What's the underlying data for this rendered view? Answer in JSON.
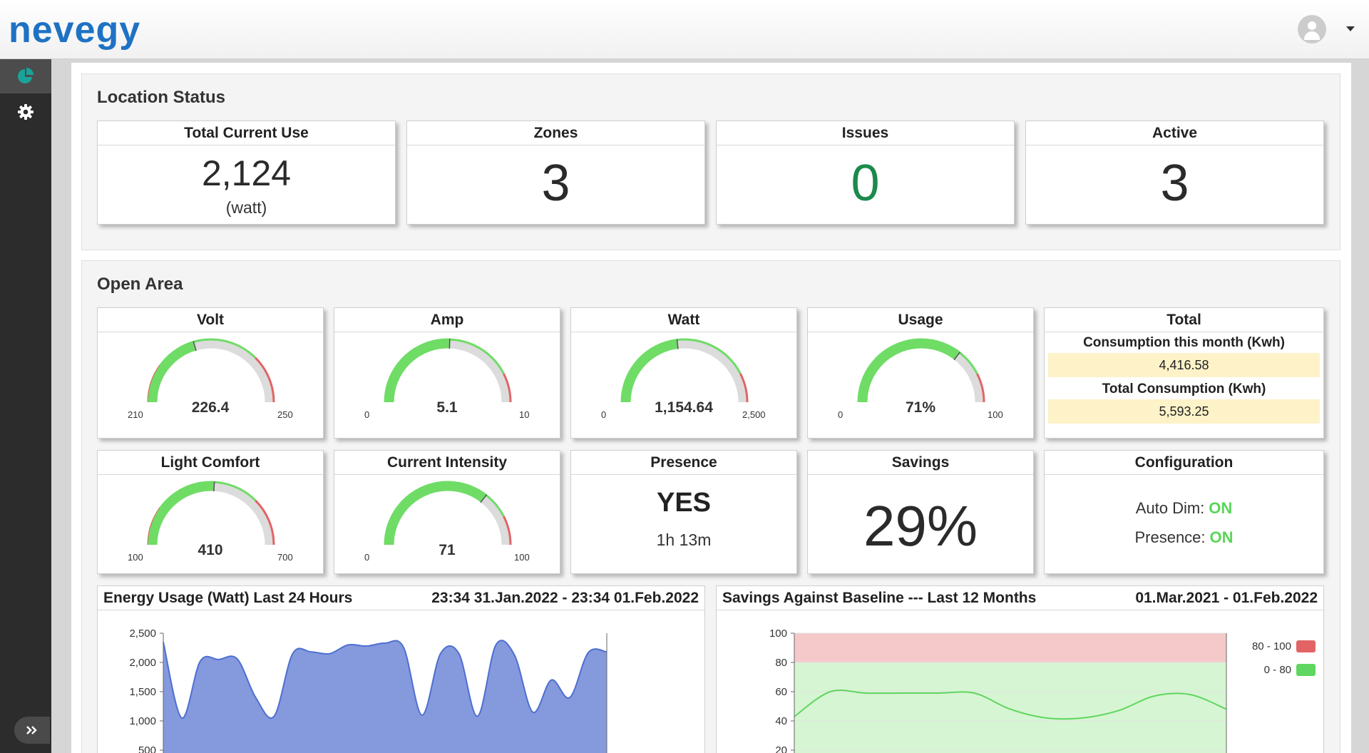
{
  "app": {
    "logo": "nevegy",
    "colors": {
      "brand": "#1e72c4",
      "accent": "#1aa39a",
      "green": "#6fdc66",
      "red": "#e36464",
      "ok": "#1b8a4c"
    }
  },
  "sidebar": {
    "items": [
      {
        "name": "dashboard",
        "icon": "pie-chart-icon",
        "active": true
      },
      {
        "name": "settings",
        "icon": "gear-icon",
        "active": false
      }
    ],
    "expand_icon": "double-chevron-right-icon"
  },
  "location_status": {
    "title": "Location Status",
    "cards": [
      {
        "label": "Total Current Use",
        "value": "2,124",
        "unit": "(watt)"
      },
      {
        "label": "Zones",
        "value": "3"
      },
      {
        "label": "Issues",
        "value": "0"
      },
      {
        "label": "Active",
        "value": "3"
      }
    ]
  },
  "open_area": {
    "title": "Open Area",
    "gauges": [
      {
        "label": "Volt",
        "value": 226.4,
        "value_text": "226.4",
        "min": 210,
        "max": 250,
        "min_text": "210",
        "max_text": "250",
        "low_red": 0.2,
        "high_red": 0.75
      },
      {
        "label": "Amp",
        "value": 5.1,
        "value_text": "5.1",
        "min": 0,
        "max": 10,
        "min_text": "0",
        "max_text": "10",
        "low_red": 0,
        "high_red": 0.85
      },
      {
        "label": "Watt",
        "value": 1154.64,
        "value_text": "1,154.64",
        "min": 0,
        "max": 2500,
        "min_text": "0",
        "max_text": "2,500",
        "low_red": 0,
        "high_red": 0.85
      },
      {
        "label": "Usage",
        "value": 71,
        "value_text": "71%",
        "min": 0,
        "max": 100,
        "min_text": "0",
        "max_text": "100",
        "low_red": 0,
        "high_red": 0.85
      },
      {
        "label": "Light Comfort",
        "value": 410,
        "value_text": "410",
        "min": 100,
        "max": 700,
        "min_text": "100",
        "max_text": "700",
        "low_red": 0.2,
        "high_red": 0.75
      },
      {
        "label": "Current Intensity",
        "value": 71,
        "value_text": "71",
        "min": 0,
        "max": 100,
        "min_text": "0",
        "max_text": "100",
        "low_red": 0,
        "high_red": 0.85
      }
    ],
    "total": {
      "label": "Total",
      "month_label": "Consumption this month (Kwh)",
      "month_value": "4,416.58",
      "total_label": "Total Consumption (Kwh)",
      "total_value": "5,593.25"
    },
    "presence": {
      "label": "Presence",
      "value": "YES",
      "duration": "1h 13m"
    },
    "savings": {
      "label": "Savings",
      "value": "29%"
    },
    "configuration": {
      "label": "Configuration",
      "auto_dim_label": "Auto Dim:",
      "auto_dim_value": "ON",
      "presence_label": "Presence:",
      "presence_value": "ON"
    }
  },
  "energy_chart": {
    "title": "Energy Usage (Watt) Last 24 Hours",
    "range": "23:34 31.Jan.2022 - 23:34 01.Feb.2022"
  },
  "savings_chart": {
    "title": "Savings Against Baseline --- Last 12 Months",
    "range": "01.Mar.2021 - 01.Feb.2022"
  },
  "chart_data": [
    {
      "type": "area",
      "title": "Energy Usage (Watt) Last 24 Hours",
      "y_ticks": [
        "2,500",
        "2,000",
        "1,500",
        "1,000",
        "500"
      ],
      "ylim": [
        500,
        2500
      ],
      "color": "#4d6fd0",
      "values": [
        2350,
        1050,
        2020,
        2050,
        2060,
        1400,
        1080,
        2150,
        2180,
        2150,
        2300,
        2280,
        2330,
        2260,
        1100,
        2150,
        2150,
        1080,
        2300,
        2130,
        1150,
        1700,
        1400,
        2170,
        2180
      ]
    },
    {
      "type": "line",
      "title": "Savings Against Baseline --- Last 12 Months",
      "y_ticks": [
        "100",
        "80",
        "60",
        "40",
        "20"
      ],
      "ylim": [
        20,
        100
      ],
      "bands": [
        {
          "name": "80 - 100",
          "from": 80,
          "to": 100,
          "color": "#f5c9c9",
          "legend_color": "#e36464"
        },
        {
          "name": "0 - 80",
          "from": 0,
          "to": 80,
          "color": "#d6f5d2",
          "legend_color": "#5fd65f"
        }
      ],
      "line_color": "#5fd65f",
      "values": [
        43,
        60,
        59,
        59,
        59,
        59,
        48,
        42,
        42,
        47,
        57,
        58,
        48
      ]
    }
  ]
}
